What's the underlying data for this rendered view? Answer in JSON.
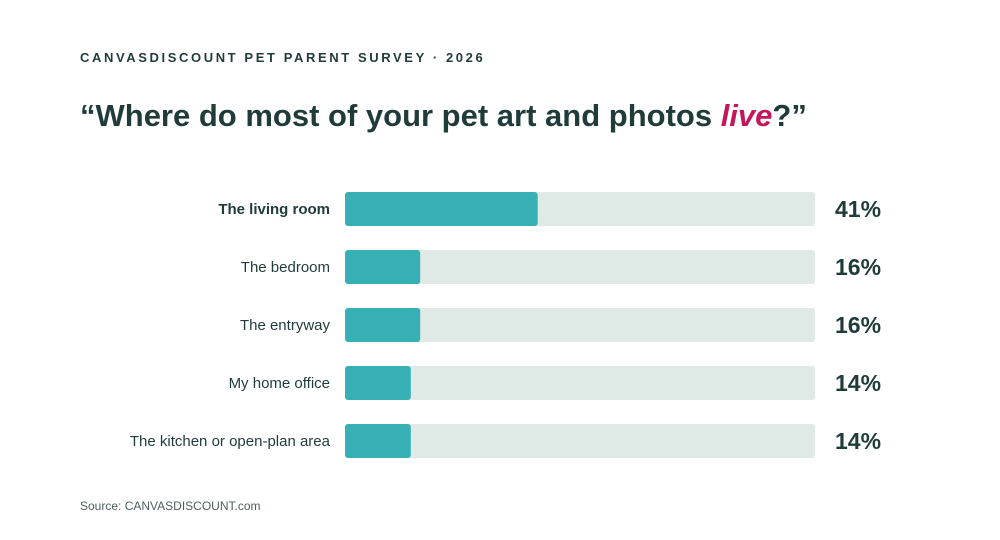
{
  "eyebrow": "CANVASDISCOUNT PET PARENT SURVEY · 2026",
  "headline": {
    "before": "“Where do most of your pet art and photos ",
    "accent": "live",
    "after": "?”"
  },
  "source": "Source: CANVASDISCOUNT.com",
  "colors": {
    "bar": "#36b0b4",
    "track": "#dfe9e5",
    "text": "#1f3b3a",
    "accent": "#c2185b"
  },
  "chart_data": {
    "type": "bar",
    "orientation": "horizontal",
    "categories": [
      "The living room",
      "The bedroom",
      "The entryway",
      "My home office",
      "The kitchen or open-plan area"
    ],
    "values": [
      41,
      16,
      16,
      14,
      14
    ],
    "value_labels": [
      "41%",
      "16%",
      "16%",
      "14%",
      "14%"
    ],
    "unit": "%",
    "xlim": [
      0,
      100
    ],
    "highlight_category": "The living room",
    "grid": false
  }
}
